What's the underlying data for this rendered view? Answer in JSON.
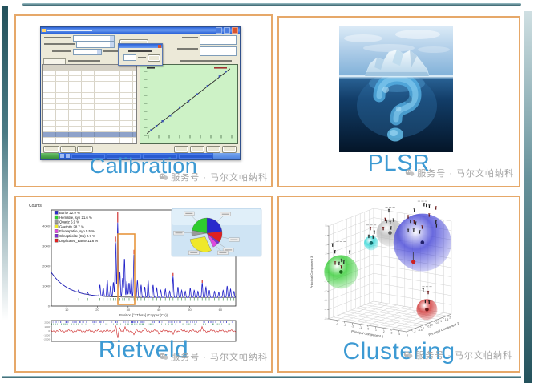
{
  "theme": {
    "title_blue": "#3d9ad3",
    "card_border": "#e6a869",
    "frame_teal_dark": "#2f5f68",
    "frame_teal_light": "#8fb3ba",
    "watermark_gray": "#a3a3a3"
  },
  "watermark": {
    "icon": "wechat-official-account-icon",
    "text": "服务号 · 马尔文帕纳科"
  },
  "panels": {
    "calibration": {
      "label": "Calibration"
    },
    "plsr": {
      "label": "PLSR"
    },
    "rietveld": {
      "label": "Rietveld"
    },
    "clustering": {
      "label": "Clustering"
    }
  },
  "chart_data": [
    {
      "id": "calibration-curve",
      "type": "scatter",
      "panel": "Calibration",
      "plot_bg": "#cdf2c6",
      "point_color": "#3a54b4",
      "line_color": "#2a2a2a",
      "points_fraction": [
        [
          0.07,
          0.1
        ],
        [
          0.13,
          0.16
        ],
        [
          0.2,
          0.23
        ],
        [
          0.29,
          0.31
        ],
        [
          0.4,
          0.43
        ],
        [
          0.5,
          0.52
        ],
        [
          0.6,
          0.62
        ],
        [
          0.72,
          0.74
        ],
        [
          0.86,
          0.88
        ],
        [
          0.93,
          0.95
        ]
      ],
      "fit_line_fraction": [
        [
          0.02,
          0.05
        ],
        [
          0.98,
          0.99
        ]
      ]
    },
    {
      "id": "rietveld-xrd",
      "type": "line",
      "panel": "Rietveld",
      "ylabel": "Counts",
      "xlabel": "Position [°2Theta] (Copper (Cu))",
      "x_ticks": [
        10,
        20,
        30,
        40,
        50,
        60
      ],
      "y_ticks": [
        0,
        1000,
        2000,
        3000,
        4000
      ],
      "xlim": [
        5,
        65
      ],
      "ylim": [
        0,
        4800
      ],
      "curve_color": "#2020c8",
      "calc_color": "#1a1a1a",
      "diff_color": "#cc2222",
      "background": {
        "floor": 430,
        "amp": 1250,
        "decay": 5.5
      },
      "peaks": [
        [
          13.9,
          130
        ],
        [
          16.8,
          100
        ],
        [
          20.8,
          560
        ],
        [
          21.9,
          430
        ],
        [
          23.2,
          820
        ],
        [
          24.3,
          540
        ],
        [
          25.2,
          730
        ],
        [
          25.9,
          2750
        ],
        [
          26.6,
          3720
        ],
        [
          27.3,
          1250
        ],
        [
          28.2,
          950
        ],
        [
          28.8,
          1950
        ],
        [
          29.6,
          800
        ],
        [
          30.3,
          720
        ],
        [
          31.0,
          980
        ],
        [
          31.9,
          2150
        ],
        [
          33.0,
          850
        ],
        [
          34.2,
          620
        ],
        [
          35.4,
          520
        ],
        [
          36.5,
          840
        ],
        [
          38.1,
          620
        ],
        [
          39.3,
          470
        ],
        [
          40.6,
          360
        ],
        [
          42.1,
          420
        ],
        [
          43.5,
          320
        ],
        [
          44.6,
          1050
        ],
        [
          46.2,
          520
        ],
        [
          47.4,
          360
        ],
        [
          48.6,
          310
        ],
        [
          50.2,
          470
        ],
        [
          51.5,
          360
        ],
        [
          52.7,
          310
        ],
        [
          54.1,
          730
        ],
        [
          55.3,
          520
        ],
        [
          56.4,
          360
        ],
        [
          58.1,
          310
        ],
        [
          59.5,
          260
        ],
        [
          60.9,
          360
        ],
        [
          62.2,
          570
        ],
        [
          63.3,
          420
        ],
        [
          64.4,
          310
        ]
      ],
      "red_caps": [
        [
          25.9,
          260
        ],
        [
          26.6,
          520
        ],
        [
          31.9,
          220
        ],
        [
          44.6,
          170
        ],
        [
          54.1,
          120
        ]
      ],
      "diff_spikes": [
        [
          25.9,
          6
        ],
        [
          26.6,
          -9
        ],
        [
          27.3,
          5
        ],
        [
          29.0,
          4
        ],
        [
          31.9,
          -6
        ],
        [
          35.4,
          3
        ],
        [
          40.0,
          -2.5
        ],
        [
          44.6,
          -5
        ],
        [
          47.0,
          2.5
        ],
        [
          54.1,
          4
        ]
      ],
      "diff_y_ticks": [
        2000,
        1000,
        0,
        -1000,
        -2000
      ],
      "phases": [
        {
          "label": "Barite 22.9 %",
          "pct": 22.9,
          "color": "#2a2acc"
        },
        {
          "label": "Hematite, syn 21.6 %",
          "pct": 21.6,
          "color": "#2ecc2e"
        },
        {
          "label": "Quartz 5.9 %",
          "pct": 5.9,
          "color": "#9a9a9a"
        },
        {
          "label": "Goethite 28.7 %",
          "pct": 28.7,
          "color": "#efe82a"
        },
        {
          "label": "Fluorapatite, syn 5.5 %",
          "pct": 5.5,
          "color": "#de4ade"
        },
        {
          "label": "Clinoptilolite (Ca) 2.7 %",
          "pct": 2.7,
          "color": "#7a30d0"
        },
        {
          "label": "Duplicated_Barite 11.6 %",
          "pct": 11.6,
          "color": "#e02020"
        }
      ],
      "pie_order": [
        0,
        6,
        5,
        4,
        3,
        2,
        1
      ],
      "pie_exploded": 3
    },
    {
      "id": "clustering-3d",
      "type": "scatter",
      "panel": "Clustering",
      "axes": {
        "x": "Principal Component 1",
        "y": "Principal Component 2",
        "z": "Principal Component 3"
      },
      "x_ticks": [
        -4,
        -3,
        -2,
        -1,
        0,
        1,
        2,
        3,
        4,
        5
      ],
      "y_ticks": [
        -2,
        -1.5,
        -1,
        -0.5,
        0,
        0.5,
        1,
        1.5,
        2
      ],
      "z_ticks": [
        -5,
        -4,
        -3,
        -2,
        -1,
        0,
        1,
        2,
        3,
        4,
        5
      ],
      "clusters": [
        {
          "name": "green",
          "color": "#33cc33",
          "pc": [
            -4,
            -2,
            0
          ],
          "radius": 21,
          "points": 8
        },
        {
          "name": "cyan",
          "color": "#2ad5d5",
          "pc": [
            -1.5,
            -0.8,
            3
          ],
          "radius": 9,
          "points": 4
        },
        {
          "name": "gray",
          "color": "#b9b9b9",
          "pc": [
            0,
            0,
            4
          ],
          "radius": 17,
          "points": 7
        },
        {
          "name": "blue",
          "color": "#4343d6",
          "pc": [
            3,
            1,
            3
          ],
          "radius": 36,
          "points": 16
        },
        {
          "name": "red",
          "color": "#d03131",
          "pc": [
            3,
            1.5,
            -4.4
          ],
          "radius": 13,
          "points": 4
        }
      ],
      "outlier": {
        "color": "#cc2020",
        "pc": [
          3,
          0,
          1.3
        ]
      }
    }
  ]
}
